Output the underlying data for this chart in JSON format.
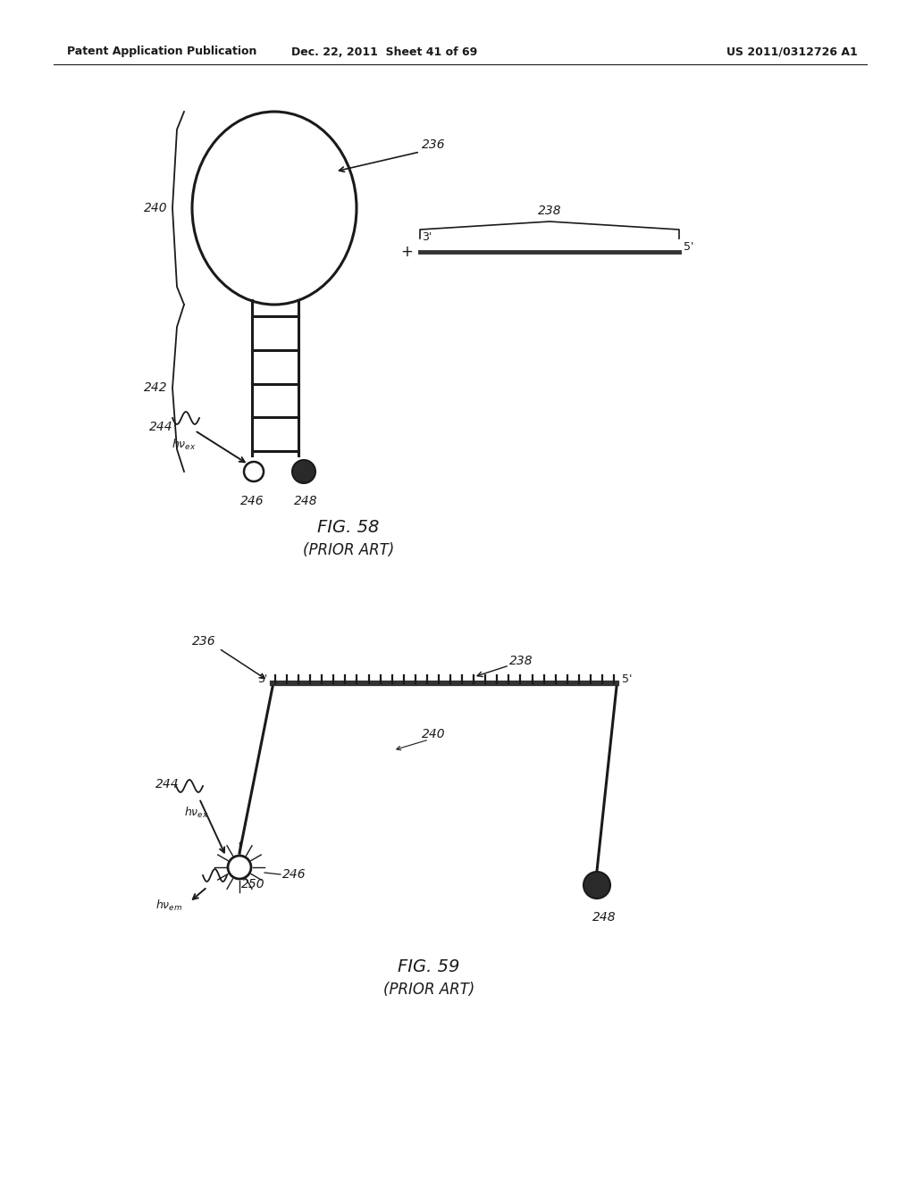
{
  "bg_color": "#ffffff",
  "line_color": "#1a1a1a",
  "header_left": "Patent Application Publication",
  "header_mid": "Dec. 22, 2011  Sheet 41 of 69",
  "header_right": "US 2011/0312726 A1",
  "fig58_title": "FIG. 58",
  "fig58_subtitle": "(PRIOR ART)",
  "fig59_title": "FIG. 59",
  "fig59_subtitle": "(PRIOR ART)"
}
